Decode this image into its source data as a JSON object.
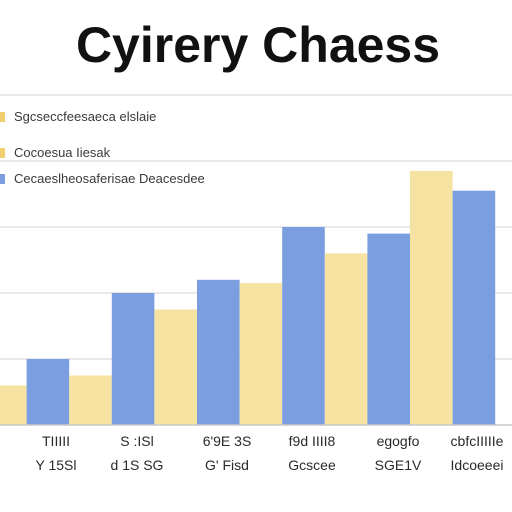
{
  "chart_data": {
    "type": "bar",
    "title": "Cyirery Chaess",
    "categories": [
      [
        "TIIIII",
        "Y 15Sl"
      ],
      [
        "S :ISl",
        "d 1S SG"
      ],
      [
        "6'9E 3S",
        "G' Fisd"
      ],
      [
        "f9d IIII8",
        "Gcscee"
      ],
      [
        "egogfo",
        "SGE1V"
      ],
      [
        "cbfcIIIIIe",
        "Idcoeeei"
      ]
    ],
    "series": [
      {
        "name": "Sgcseccfeesaeca elslaie",
        "color": "#f7e3a1",
        "values": [
          12,
          15,
          35,
          43,
          52,
          77
        ]
      },
      {
        "name": "Cocoesua Iiesak",
        "color": "#f7e3a1",
        "values": [
          0,
          0,
          0,
          0,
          0,
          0
        ]
      },
      {
        "name": "Cecaeslheosaferisae Deacesdee",
        "color": "#7a9ee0",
        "values": [
          20,
          40,
          44,
          60,
          58,
          71
        ]
      }
    ],
    "bar_order": [
      {
        "series": 0,
        "category": 0
      },
      {
        "series": 2,
        "category": 0
      },
      {
        "series": 0,
        "category": 1
      },
      {
        "series": 2,
        "category": 1
      },
      {
        "series": 0,
        "category": 2
      },
      {
        "series": 2,
        "category": 2
      },
      {
        "series": 0,
        "category": 3
      },
      {
        "series": 2,
        "category": 3
      },
      {
        "series": 0,
        "category": 4
      },
      {
        "series": 2,
        "category": 4
      },
      {
        "series": 0,
        "category": 5
      },
      {
        "series": 2,
        "category": 5
      }
    ],
    "ylim": [
      0,
      100
    ],
    "grid": true,
    "legend_position": "top-left",
    "colors": {
      "yellow_bar": "#f7e3a1",
      "blue_bar": "#7a9ee0",
      "grid": "#dcdcdc",
      "title": "#111111",
      "legend_yellow": "#f1cf6f",
      "legend_blue": "#7a9ee0"
    }
  }
}
